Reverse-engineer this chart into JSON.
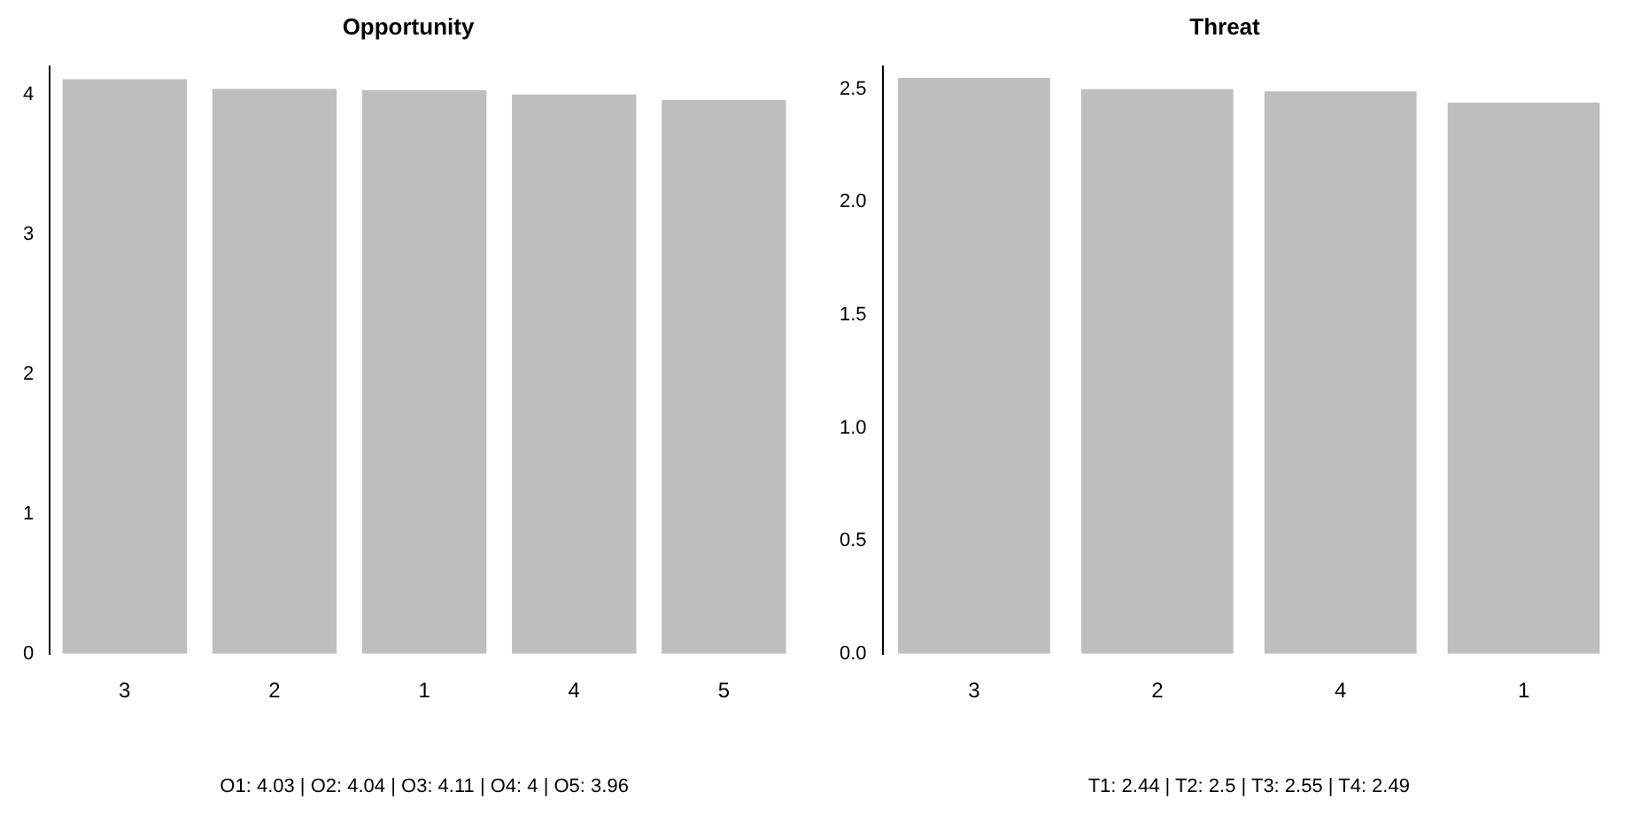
{
  "chart_data": [
    {
      "type": "bar",
      "title": "Opportunity",
      "xlabel": "O1: 4.03 | O2: 4.04 | O3: 4.11 | O4: 4 | O5: 3.96",
      "categories": [
        "3",
        "2",
        "1",
        "4",
        "5"
      ],
      "values": [
        4.11,
        4.04,
        4.03,
        4,
        3.96
      ],
      "color": "#bebebe",
      "ylim": [
        0,
        4.2
      ],
      "yticks": [
        0,
        1,
        2,
        3,
        4
      ],
      "grid": false,
      "legend": false
    },
    {
      "type": "bar",
      "title": "Threat",
      "xlabel": "T1: 2.44 | T2: 2.5 | T3: 2.55 | T4: 2.49",
      "categories": [
        "3",
        "2",
        "4",
        "1"
      ],
      "values": [
        2.55,
        2.5,
        2.49,
        2.44
      ],
      "color": "#bebebe",
      "ylim": [
        0,
        2.6
      ],
      "yticks": [
        {
          "value": 0,
          "label": "0.0"
        },
        {
          "value": 0.5,
          "label": "0.5"
        },
        {
          "value": 1,
          "label": "1.0"
        },
        {
          "value": 1.5,
          "label": "1.5"
        },
        {
          "value": 2,
          "label": "2.0"
        },
        {
          "value": 2.5,
          "label": "2.5"
        }
      ],
      "grid": false,
      "legend": false
    }
  ]
}
